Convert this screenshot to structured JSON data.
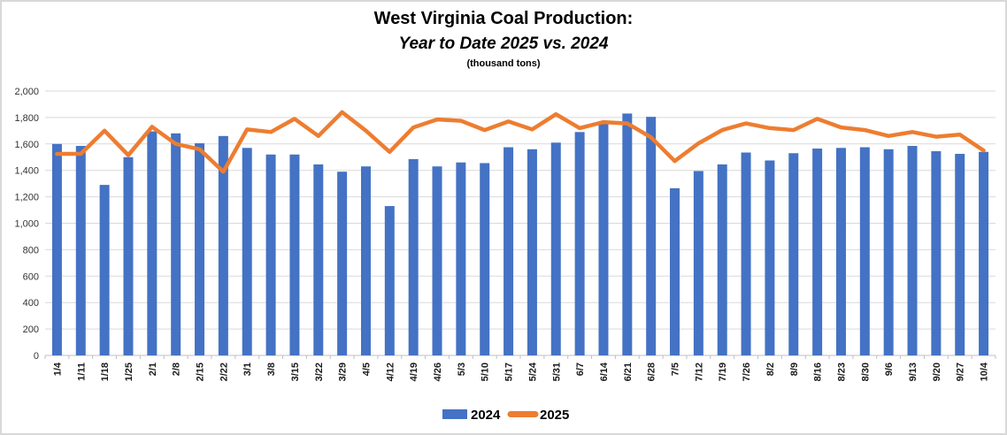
{
  "header": {
    "title": "West Virginia Coal Production:",
    "subtitle": "Year to Date 2025 vs. 2024",
    "units_note": "(thousand tons)"
  },
  "colors": {
    "bar_2024": "#4472C4",
    "line_2025": "#ED7D31",
    "gridline": "#D9D9D9",
    "axis_line": "#BFBFBF",
    "y_label_text": "#333333",
    "x_label_text": "#1a1a1a",
    "legend_text": "#000000"
  },
  "chart_data": {
    "type": "bar",
    "subtype": "combo-bar-line",
    "title": "West Virginia Coal Production: Year to Date 2025 vs. 2024",
    "units": "thousand tons",
    "xlabel": "",
    "ylabel": "",
    "ylim": [
      0,
      2000
    ],
    "ytick_interval": 200,
    "grid": "horizontal",
    "legend_position": "bottom",
    "x_labels_rotation": -90,
    "categories": [
      "1/4",
      "1/11",
      "1/18",
      "1/25",
      "2/1",
      "2/8",
      "2/15",
      "2/22",
      "3/1",
      "3/8",
      "3/15",
      "3/22",
      "3/29",
      "4/5",
      "4/12",
      "4/19",
      "4/26",
      "5/3",
      "5/10",
      "5/17",
      "5/24",
      "5/31",
      "6/7",
      "6/14",
      "6/21",
      "6/28",
      "7/5",
      "7/12",
      "7/19",
      "7/26",
      "8/2",
      "8/9",
      "8/16",
      "8/23",
      "8/30",
      "9/6",
      "9/13",
      "9/20",
      "9/27",
      "10/4"
    ],
    "series": [
      {
        "name": "2024",
        "type": "bar",
        "color": "#4472C4",
        "values": [
          1600,
          1585,
          1290,
          1500,
          1695,
          1680,
          1605,
          1660,
          1570,
          1520,
          1520,
          1445,
          1390,
          1430,
          1130,
          1485,
          1430,
          1460,
          1455,
          1575,
          1560,
          1610,
          1690,
          1750,
          1830,
          1805,
          1265,
          1395,
          1445,
          1535,
          1475,
          1530,
          1565,
          1570,
          1575,
          1560,
          1585,
          1545,
          1525,
          1540
        ]
      },
      {
        "name": "2025",
        "type": "line",
        "color": "#ED7D31",
        "values": [
          1525,
          1525,
          1700,
          1515,
          1730,
          1600,
          1560,
          1390,
          1710,
          1690,
          1790,
          1660,
          1840,
          1700,
          1540,
          1725,
          1785,
          1775,
          1705,
          1770,
          1710,
          1825,
          1720,
          1765,
          1755,
          1650,
          1470,
          1605,
          1705,
          1755,
          1720,
          1705,
          1790,
          1725,
          1705,
          1660,
          1690,
          1655,
          1670,
          1550
        ]
      }
    ]
  }
}
